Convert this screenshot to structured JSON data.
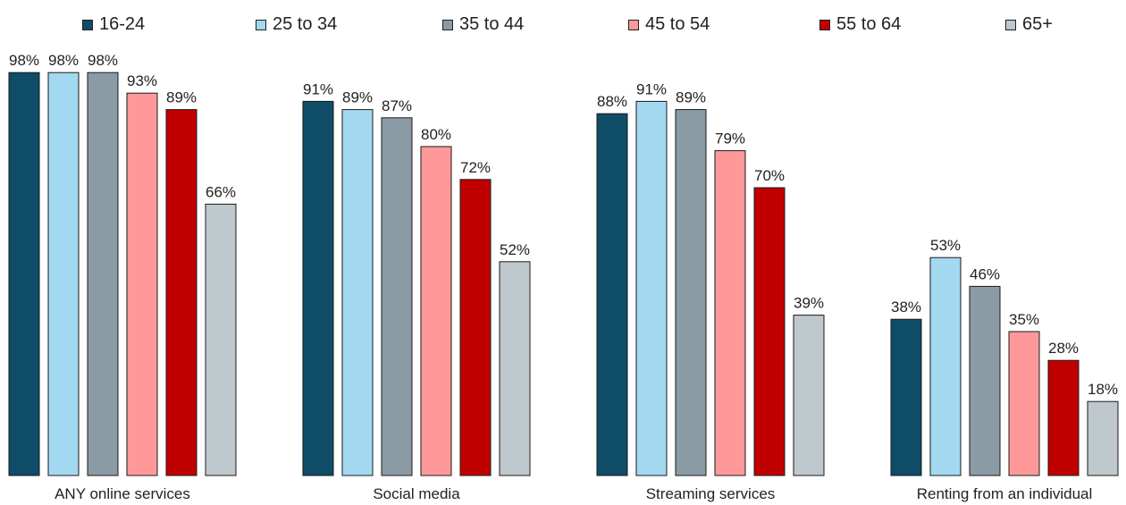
{
  "chart_data": {
    "type": "bar",
    "categories": [
      "ANY online services",
      "Social media",
      "Streaming services",
      "Renting from an individual"
    ],
    "series": [
      {
        "name": "16-24",
        "color": "#0f4c68",
        "values": [
          98,
          91,
          88,
          38
        ],
        "labels": [
          "98%",
          "91%",
          "88%",
          "38%"
        ]
      },
      {
        "name": "25 to 34",
        "color": "#a3d8f1",
        "values": [
          98,
          89,
          91,
          53
        ],
        "labels": [
          "98%",
          "89%",
          "91%",
          "53%"
        ]
      },
      {
        "name": "35 to 44",
        "color": "#8b9ba5",
        "values": [
          98,
          87,
          89,
          46
        ],
        "labels": [
          "98%",
          "87%",
          "89%",
          "46%"
        ]
      },
      {
        "name": "45 to 54",
        "color": "#ff9999",
        "values": [
          93,
          80,
          79,
          35
        ],
        "labels": [
          "93%",
          "80%",
          "79%",
          "35%"
        ]
      },
      {
        "name": "55 to 64",
        "color": "#c00000",
        "values": [
          89,
          72,
          70,
          28
        ],
        "labels": [
          "89%",
          "72%",
          "70%",
          "28%"
        ]
      },
      {
        "name": "65+",
        "color": "#bfc8cd",
        "values": [
          66,
          52,
          39,
          18
        ],
        "labels": [
          "66%",
          "52%",
          "39%",
          "18%"
        ]
      }
    ],
    "ylim": [
      0,
      100
    ],
    "grid": false,
    "legend_position": "top"
  }
}
